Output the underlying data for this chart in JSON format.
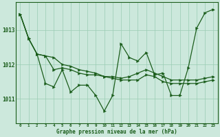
{
  "xlabel": "Graphe pression niveau de la mer (hPa)",
  "x_ticks": [
    0,
    1,
    2,
    3,
    4,
    5,
    6,
    7,
    8,
    9,
    10,
    11,
    12,
    13,
    14,
    15,
    16,
    17,
    18,
    19,
    20,
    21,
    22,
    23
  ],
  "ylim": [
    1010.3,
    1013.8
  ],
  "yticks": [
    1011,
    1012,
    1013
  ],
  "background_color": "#cce8dc",
  "grid_color": "#99ccb3",
  "line_color": "#1a5c1a",
  "series1_y": [
    1013.45,
    1012.75,
    1012.3,
    1011.45,
    1011.35,
    1011.85,
    1011.2,
    1011.4,
    1011.4,
    1011.1,
    1010.65,
    1011.1,
    1012.6,
    1012.2,
    1012.1,
    1012.35,
    1011.7,
    1011.75,
    1011.1,
    1011.1,
    1011.9,
    1013.05,
    1013.5,
    1013.6
  ],
  "series2_y": [
    1013.45,
    1012.75,
    1012.3,
    1012.25,
    1012.2,
    1012.0,
    1011.95,
    1011.85,
    1011.8,
    1011.75,
    1011.65,
    1011.6,
    1011.55,
    1011.55,
    1011.55,
    1011.7,
    1011.65,
    1011.5,
    1011.45,
    1011.45,
    1011.45,
    1011.45,
    1011.5,
    1011.55
  ],
  "series3_y": [
    1013.45,
    1012.75,
    1012.3,
    1012.25,
    1011.85,
    1011.9,
    1011.85,
    1011.75,
    1011.7,
    1011.7,
    1011.65,
    1011.65,
    1011.6,
    1011.65,
    1011.75,
    1011.85,
    1011.75,
    1011.65,
    1011.55,
    1011.55,
    1011.55,
    1011.55,
    1011.6,
    1011.65
  ]
}
